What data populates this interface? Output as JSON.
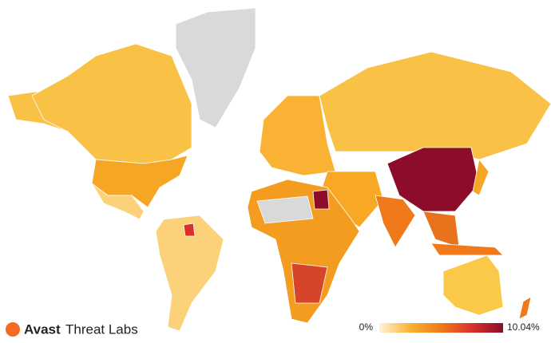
{
  "brand": {
    "name": "Avast",
    "product": "Threat Labs"
  },
  "legend": {
    "min": {
      "value": 0,
      "label": "0%"
    },
    "max": {
      "value": 10.04,
      "label": "10.04%"
    },
    "colors": [
      "#fdf3d6",
      "#f9b233",
      "#f07a1a",
      "#d9302a",
      "#8b0d2a"
    ]
  }
}
